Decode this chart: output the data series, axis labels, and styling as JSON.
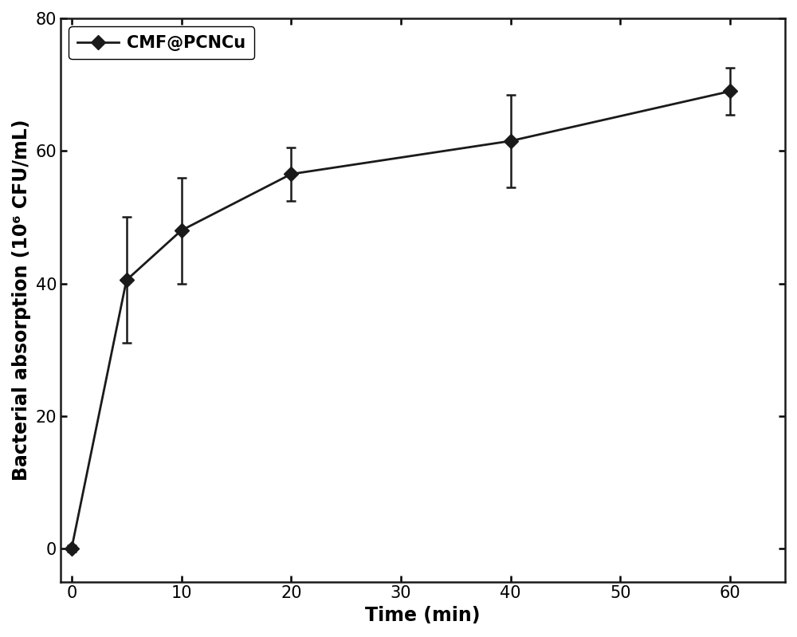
{
  "x": [
    0,
    5,
    10,
    20,
    40,
    60
  ],
  "y": [
    0,
    40.5,
    48.0,
    56.5,
    61.5,
    69.0
  ],
  "yerr": [
    0.5,
    9.5,
    8.0,
    4.0,
    7.0,
    3.5
  ],
  "xlabel": "Time (min)",
  "ylabel": "Bacterial absorption (10⁶ CFU/mL)",
  "legend_label": "CMF@PCNCu",
  "xlim": [
    -1,
    65
  ],
  "ylim": [
    -5,
    80
  ],
  "xticks": [
    0,
    10,
    20,
    30,
    40,
    50,
    60
  ],
  "yticks": [
    0,
    20,
    40,
    60,
    80
  ],
  "line_color": "#1a1a1a",
  "marker": "D",
  "marker_size": 9,
  "marker_facecolor": "#1a1a1a",
  "marker_edgecolor": "#1a1a1a",
  "line_width": 2.0,
  "capsize": 4,
  "label_fontsize": 17,
  "tick_fontsize": 15,
  "legend_fontsize": 15,
  "background_color": "#ffffff"
}
